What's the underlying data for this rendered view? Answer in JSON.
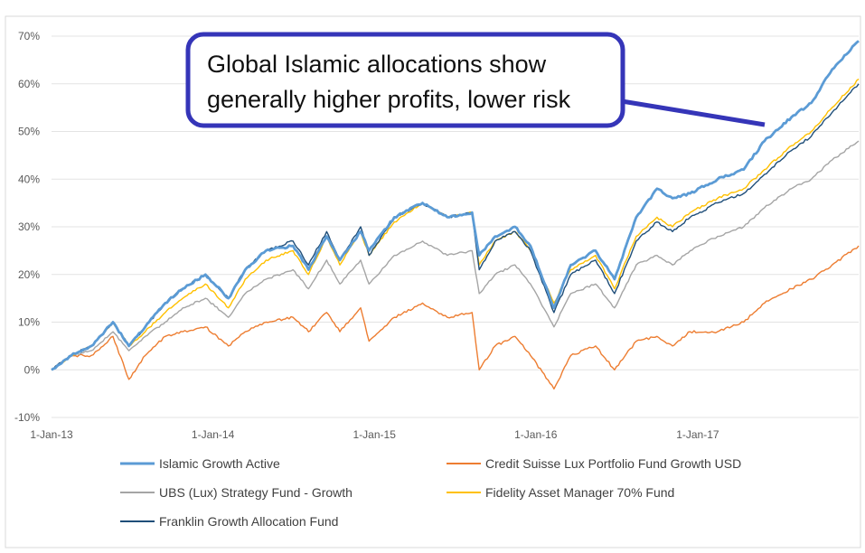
{
  "chart_data": {
    "type": "line",
    "title": "",
    "xlabel": "",
    "ylabel": "",
    "x_ticks": [
      "1-Jan-13",
      "1-Jan-14",
      "1-Jan-15",
      "1-Jan-16",
      "1-Jan-17"
    ],
    "y_ticks": [
      "-10%",
      "0%",
      "10%",
      "20%",
      "30%",
      "40%",
      "50%",
      "60%",
      "70%"
    ],
    "ylim": [
      -10,
      70
    ],
    "xlim": [
      "2013-01-01",
      "2017-12-31"
    ],
    "y_unit": "%",
    "grid": "horizontal",
    "legend_position": "bottom",
    "annotation": {
      "lines": [
        "Global Islamic allocations show",
        "generally higher profits, lower risk"
      ]
    },
    "series": [
      {
        "name": "Islamic Growth Active",
        "color": "#5b9bd5",
        "points": [
          [
            "2013-01-01",
            0
          ],
          [
            "2013-02-15",
            3
          ],
          [
            "2013-04-01",
            5
          ],
          [
            "2013-05-20",
            10
          ],
          [
            "2013-06-25",
            5
          ],
          [
            "2013-08-01",
            9
          ],
          [
            "2013-09-15",
            14
          ],
          [
            "2013-10-25",
            17
          ],
          [
            "2013-12-15",
            20
          ],
          [
            "2014-02-05",
            15
          ],
          [
            "2014-03-15",
            21
          ],
          [
            "2014-05-01",
            25
          ],
          [
            "2014-07-01",
            26
          ],
          [
            "2014-08-05",
            21
          ],
          [
            "2014-09-15",
            28
          ],
          [
            "2014-10-15",
            23
          ],
          [
            "2014-12-01",
            29
          ],
          [
            "2014-12-20",
            25
          ],
          [
            "2015-02-15",
            32
          ],
          [
            "2015-04-20",
            35
          ],
          [
            "2015-06-15",
            32
          ],
          [
            "2015-08-10",
            33
          ],
          [
            "2015-08-26",
            24
          ],
          [
            "2015-10-01",
            28
          ],
          [
            "2015-11-15",
            30
          ],
          [
            "2015-12-20",
            26
          ],
          [
            "2016-02-11",
            13
          ],
          [
            "2016-03-20",
            22
          ],
          [
            "2016-05-15",
            25
          ],
          [
            "2016-06-27",
            19
          ],
          [
            "2016-08-15",
            32
          ],
          [
            "2016-10-01",
            38
          ],
          [
            "2016-11-05",
            36
          ],
          [
            "2016-12-15",
            37
          ],
          [
            "2017-02-15",
            40
          ],
          [
            "2017-04-15",
            42
          ],
          [
            "2017-06-01",
            48
          ],
          [
            "2017-08-01",
            53
          ],
          [
            "2017-09-15",
            56
          ],
          [
            "2017-11-01",
            63
          ],
          [
            "2017-12-31",
            69
          ]
        ]
      },
      {
        "name": "Credit Suisse Lux Portfolio Fund Growth USD",
        "color": "#ed7d31",
        "points": [
          [
            "2013-01-01",
            0
          ],
          [
            "2013-02-15",
            3
          ],
          [
            "2013-04-01",
            3
          ],
          [
            "2013-05-20",
            7
          ],
          [
            "2013-06-25",
            -2
          ],
          [
            "2013-08-01",
            3
          ],
          [
            "2013-09-15",
            7
          ],
          [
            "2013-10-25",
            8
          ],
          [
            "2013-12-15",
            9
          ],
          [
            "2014-02-05",
            5
          ],
          [
            "2014-03-15",
            8
          ],
          [
            "2014-05-01",
            10
          ],
          [
            "2014-07-01",
            11
          ],
          [
            "2014-08-05",
            8
          ],
          [
            "2014-09-15",
            12
          ],
          [
            "2014-10-15",
            8
          ],
          [
            "2014-12-01",
            13
          ],
          [
            "2014-12-20",
            6
          ],
          [
            "2015-02-15",
            11
          ],
          [
            "2015-04-20",
            14
          ],
          [
            "2015-06-15",
            11
          ],
          [
            "2015-08-10",
            12
          ],
          [
            "2015-08-26",
            0
          ],
          [
            "2015-10-01",
            5
          ],
          [
            "2015-11-15",
            7
          ],
          [
            "2015-12-20",
            3
          ],
          [
            "2016-02-11",
            -4
          ],
          [
            "2016-03-20",
            3
          ],
          [
            "2016-05-15",
            5
          ],
          [
            "2016-06-27",
            0
          ],
          [
            "2016-08-15",
            6
          ],
          [
            "2016-10-01",
            7
          ],
          [
            "2016-11-05",
            5
          ],
          [
            "2016-12-15",
            8
          ],
          [
            "2017-02-15",
            8
          ],
          [
            "2017-04-15",
            10
          ],
          [
            "2017-06-01",
            14
          ],
          [
            "2017-08-01",
            17
          ],
          [
            "2017-09-15",
            19
          ],
          [
            "2017-11-01",
            22
          ],
          [
            "2017-12-31",
            26
          ]
        ]
      },
      {
        "name": "UBS (Lux) Strategy Fund - Growth",
        "color": "#a5a5a5",
        "points": [
          [
            "2013-01-01",
            0
          ],
          [
            "2013-02-15",
            3
          ],
          [
            "2013-04-01",
            4
          ],
          [
            "2013-05-20",
            8
          ],
          [
            "2013-06-25",
            4
          ],
          [
            "2013-08-01",
            7
          ],
          [
            "2013-09-15",
            10
          ],
          [
            "2013-10-25",
            13
          ],
          [
            "2013-12-15",
            15
          ],
          [
            "2014-02-05",
            11
          ],
          [
            "2014-03-15",
            16
          ],
          [
            "2014-05-01",
            19
          ],
          [
            "2014-07-01",
            21
          ],
          [
            "2014-08-05",
            17
          ],
          [
            "2014-09-15",
            23
          ],
          [
            "2014-10-15",
            18
          ],
          [
            "2014-12-01",
            23
          ],
          [
            "2014-12-20",
            18
          ],
          [
            "2015-02-15",
            24
          ],
          [
            "2015-04-20",
            27
          ],
          [
            "2015-06-15",
            24
          ],
          [
            "2015-08-10",
            25
          ],
          [
            "2015-08-26",
            16
          ],
          [
            "2015-10-01",
            20
          ],
          [
            "2015-11-15",
            22
          ],
          [
            "2015-12-20",
            18
          ],
          [
            "2016-02-11",
            9
          ],
          [
            "2016-03-20",
            16
          ],
          [
            "2016-05-15",
            18
          ],
          [
            "2016-06-27",
            13
          ],
          [
            "2016-08-15",
            22
          ],
          [
            "2016-10-01",
            24
          ],
          [
            "2016-11-05",
            22
          ],
          [
            "2016-12-15",
            25
          ],
          [
            "2017-02-15",
            28
          ],
          [
            "2017-04-15",
            30
          ],
          [
            "2017-06-01",
            34
          ],
          [
            "2017-08-01",
            38
          ],
          [
            "2017-09-15",
            40
          ],
          [
            "2017-11-01",
            44
          ],
          [
            "2017-12-31",
            48
          ]
        ]
      },
      {
        "name": "Fidelity Asset Manager 70% Fund",
        "color": "#ffc000",
        "points": [
          [
            "2013-01-01",
            0
          ],
          [
            "2013-02-15",
            3
          ],
          [
            "2013-04-01",
            5
          ],
          [
            "2013-05-20",
            10
          ],
          [
            "2013-06-25",
            5
          ],
          [
            "2013-08-01",
            8
          ],
          [
            "2013-09-15",
            12
          ],
          [
            "2013-10-25",
            15
          ],
          [
            "2013-12-15",
            18
          ],
          [
            "2014-02-05",
            13
          ],
          [
            "2014-03-15",
            19
          ],
          [
            "2014-05-01",
            23
          ],
          [
            "2014-07-01",
            25
          ],
          [
            "2014-08-05",
            20
          ],
          [
            "2014-09-15",
            28
          ],
          [
            "2014-10-15",
            22
          ],
          [
            "2014-12-01",
            29
          ],
          [
            "2014-12-20",
            24
          ],
          [
            "2015-02-15",
            31
          ],
          [
            "2015-04-20",
            35
          ],
          [
            "2015-06-15",
            32
          ],
          [
            "2015-08-10",
            33
          ],
          [
            "2015-08-26",
            22
          ],
          [
            "2015-10-01",
            27
          ],
          [
            "2015-11-15",
            29
          ],
          [
            "2015-12-20",
            25
          ],
          [
            "2016-02-11",
            14
          ],
          [
            "2016-03-20",
            21
          ],
          [
            "2016-05-15",
            24
          ],
          [
            "2016-06-27",
            17
          ],
          [
            "2016-08-15",
            28
          ],
          [
            "2016-10-01",
            32
          ],
          [
            "2016-11-05",
            30
          ],
          [
            "2016-12-15",
            33
          ],
          [
            "2017-02-15",
            36
          ],
          [
            "2017-04-15",
            38
          ],
          [
            "2017-06-01",
            42
          ],
          [
            "2017-08-01",
            47
          ],
          [
            "2017-09-15",
            50
          ],
          [
            "2017-11-01",
            55
          ],
          [
            "2017-12-31",
            61
          ]
        ]
      },
      {
        "name": "Franklin Growth Allocation Fund",
        "color": "#1f4e79",
        "points": [
          [
            "2013-01-01",
            0
          ],
          [
            "2013-02-15",
            3
          ],
          [
            "2013-04-01",
            5
          ],
          [
            "2013-05-20",
            10
          ],
          [
            "2013-06-25",
            5
          ],
          [
            "2013-08-01",
            9
          ],
          [
            "2013-09-15",
            14
          ],
          [
            "2013-10-25",
            17
          ],
          [
            "2013-12-15",
            20
          ],
          [
            "2014-02-05",
            15
          ],
          [
            "2014-03-15",
            21
          ],
          [
            "2014-05-01",
            25
          ],
          [
            "2014-07-01",
            27
          ],
          [
            "2014-08-05",
            22
          ],
          [
            "2014-09-15",
            29
          ],
          [
            "2014-10-15",
            23
          ],
          [
            "2014-12-01",
            30
          ],
          [
            "2014-12-20",
            24
          ],
          [
            "2015-02-15",
            32
          ],
          [
            "2015-04-20",
            35
          ],
          [
            "2015-06-15",
            32
          ],
          [
            "2015-08-10",
            33
          ],
          [
            "2015-08-26",
            21
          ],
          [
            "2015-10-01",
            27
          ],
          [
            "2015-11-15",
            29
          ],
          [
            "2015-12-20",
            25
          ],
          [
            "2016-02-11",
            12
          ],
          [
            "2016-03-20",
            20
          ],
          [
            "2016-05-15",
            23
          ],
          [
            "2016-06-27",
            16
          ],
          [
            "2016-08-15",
            27
          ],
          [
            "2016-10-01",
            31
          ],
          [
            "2016-11-05",
            29
          ],
          [
            "2016-12-15",
            32
          ],
          [
            "2017-02-15",
            35
          ],
          [
            "2017-04-15",
            37
          ],
          [
            "2017-06-01",
            41
          ],
          [
            "2017-08-01",
            46
          ],
          [
            "2017-09-15",
            49
          ],
          [
            "2017-11-01",
            54
          ],
          [
            "2017-12-31",
            60
          ]
        ]
      }
    ]
  }
}
